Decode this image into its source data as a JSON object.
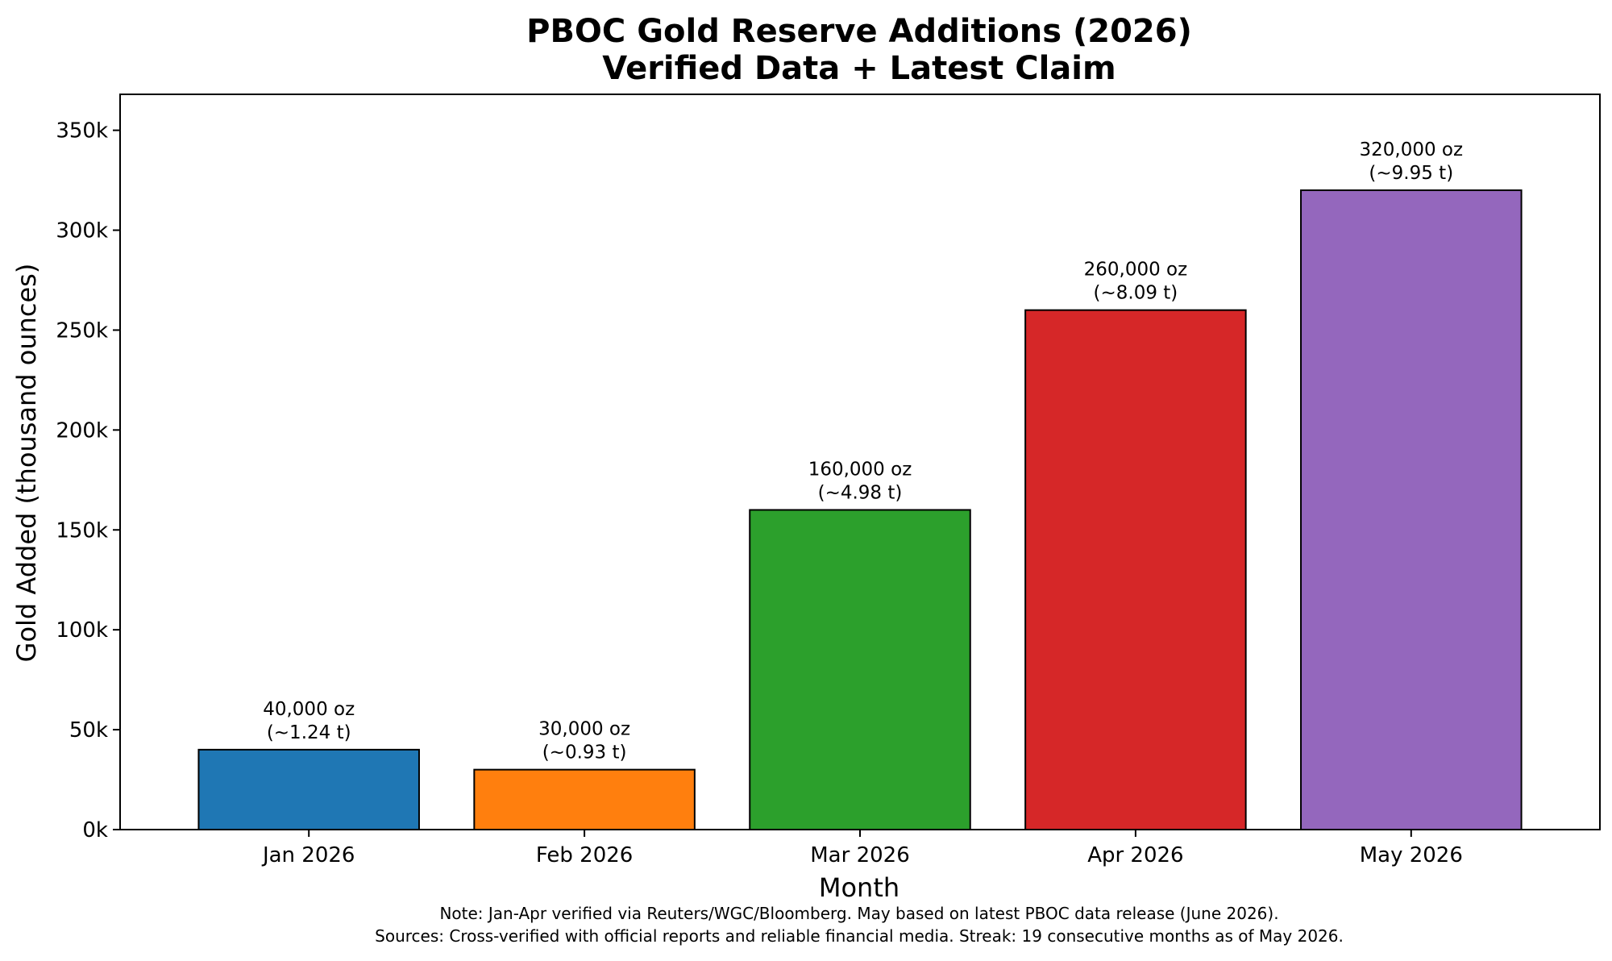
{
  "chart_data": {
    "type": "bar",
    "title": [
      "PBOC Gold Reserve Additions (2026)",
      "Verified Data + Latest Claim"
    ],
    "xlabel": "Month",
    "ylabel": "Gold Added (thousand ounces)",
    "categories": [
      "Jan 2026",
      "Feb 2026",
      "Mar 2026",
      "Apr 2026",
      "May 2026"
    ],
    "values": [
      40000,
      30000,
      160000,
      260000,
      320000
    ],
    "colors": [
      "#1f77b4",
      "#ff7f0e",
      "#2ca02c",
      "#d62728",
      "#9467bd"
    ],
    "data_labels": [
      [
        "40,000 oz",
        "(~1.24 t)"
      ],
      [
        "30,000 oz",
        "(~0.93 t)"
      ],
      [
        "160,000 oz",
        "(~4.98 t)"
      ],
      [
        "260,000 oz",
        "(~8.09 t)"
      ],
      [
        "320,000 oz",
        "(~9.95 t)"
      ]
    ],
    "ylim": [
      0,
      368000
    ],
    "yticks": [
      0,
      50000,
      100000,
      150000,
      200000,
      250000,
      300000,
      350000
    ],
    "ytick_labels": [
      "0k",
      "50k",
      "100k",
      "150k",
      "200k",
      "250k",
      "300k",
      "350k"
    ],
    "grid": false,
    "notes": [
      "Note: Jan-Apr verified via Reuters/WGC/Bloomberg. May based on latest PBOC data release (June 2026).",
      "Sources: Cross-verified with official reports and reliable financial media. Streak: 19 consecutive months as of May 2026."
    ]
  }
}
